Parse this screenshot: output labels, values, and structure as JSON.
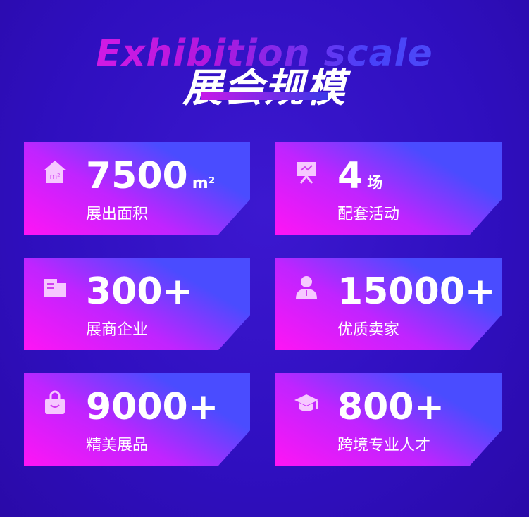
{
  "header": {
    "title_en": "Exhibition scale",
    "title_cn": "展会规模"
  },
  "colors": {
    "background": "#3212c4",
    "card_start": "#ff14f5",
    "card_end": "#4a4cff"
  },
  "cards": [
    {
      "icon": "house-m2-icon",
      "value": "7500",
      "unit": "m²",
      "label": "展出面积"
    },
    {
      "icon": "presentation-board-icon",
      "value": "4",
      "unit": "场",
      "label": "配套活动"
    },
    {
      "icon": "building-icon",
      "value": "300+",
      "unit": "",
      "label": "展商企业"
    },
    {
      "icon": "person-icon",
      "value": "15000+",
      "unit": "",
      "label": "优质卖家"
    },
    {
      "icon": "shopping-bag-icon",
      "value": "9000+",
      "unit": "",
      "label": "精美展品"
    },
    {
      "icon": "graduation-cap-icon",
      "value": "800+",
      "unit": "",
      "label": "跨境专业人才"
    }
  ]
}
